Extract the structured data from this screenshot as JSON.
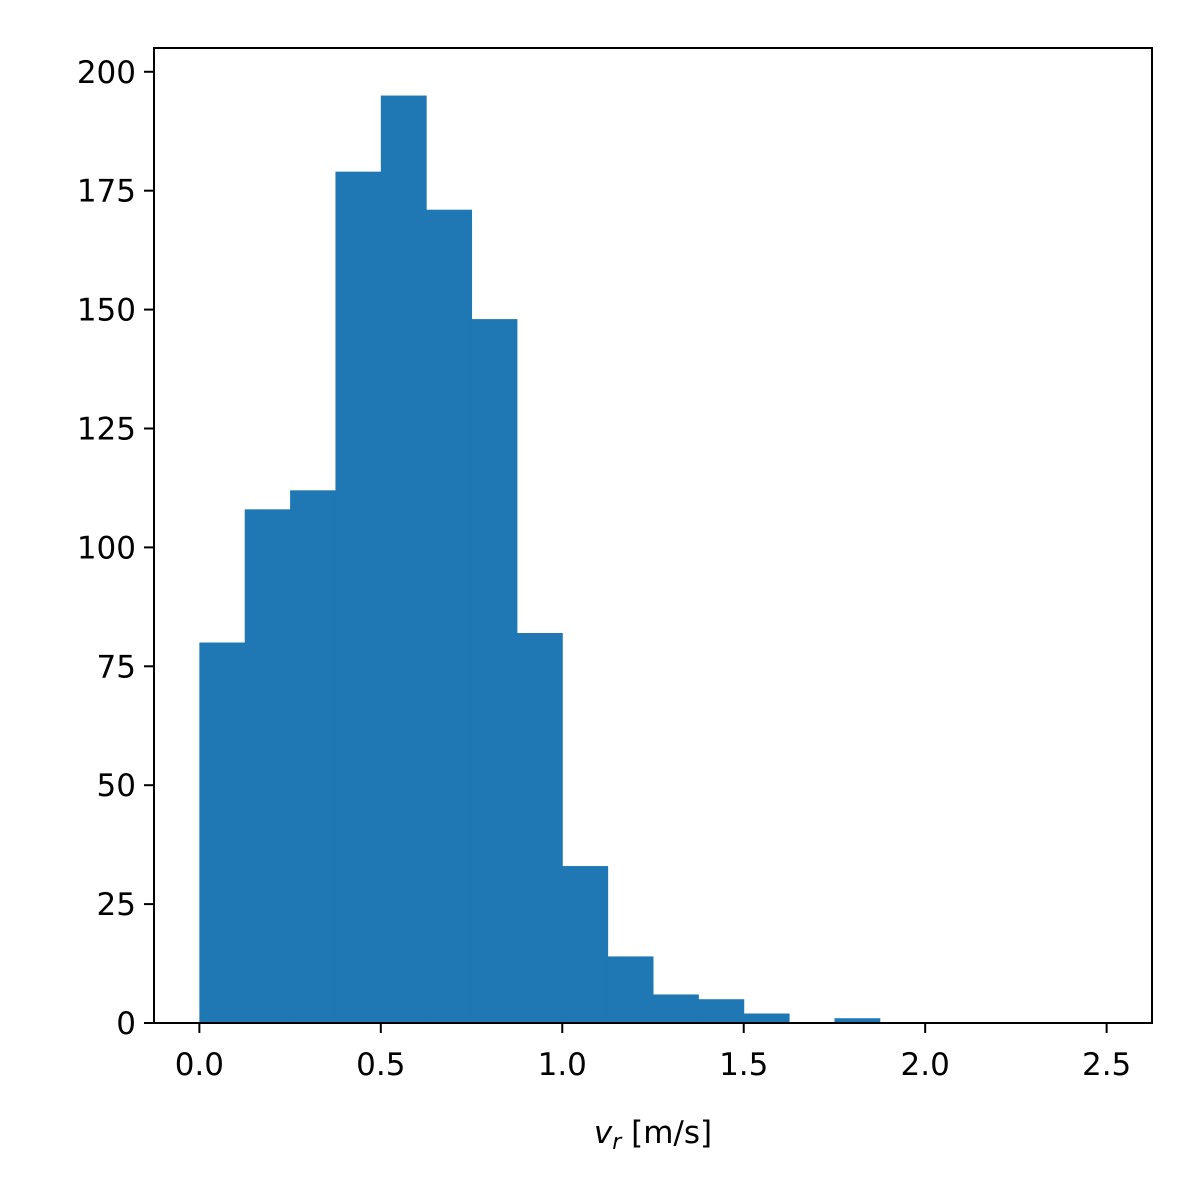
{
  "chart_data": {
    "type": "bar",
    "bin_edges": [
      0.0,
      0.125,
      0.25,
      0.375,
      0.5,
      0.625,
      0.75,
      0.875,
      1.0,
      1.125,
      1.25,
      1.375,
      1.5,
      1.625,
      1.75,
      1.875,
      2.0,
      2.125,
      2.25,
      2.375,
      2.5
    ],
    "values": [
      80,
      108,
      112,
      179,
      195,
      171,
      148,
      82,
      33,
      14,
      6,
      5,
      2,
      0,
      1,
      0,
      0,
      0,
      0,
      0
    ],
    "xlim": [
      -0.125,
      2.625
    ],
    "ylim": [
      0,
      205
    ],
    "xticks": [
      0.0,
      0.5,
      1.0,
      1.5,
      2.0,
      2.5
    ],
    "xtick_labels": [
      "0.0",
      "0.5",
      "1.0",
      "1.5",
      "2.0",
      "2.5"
    ],
    "yticks": [
      0,
      25,
      50,
      75,
      100,
      125,
      150,
      175,
      200
    ],
    "ytick_labels": [
      "0",
      "25",
      "50",
      "75",
      "100",
      "125",
      "150",
      "175",
      "200"
    ],
    "xlabel": {
      "var": "v",
      "sub": "r",
      "unit": " [m/s]"
    },
    "ylabel": "",
    "title": "",
    "grid": false,
    "bar_color": "#1f77b4"
  }
}
